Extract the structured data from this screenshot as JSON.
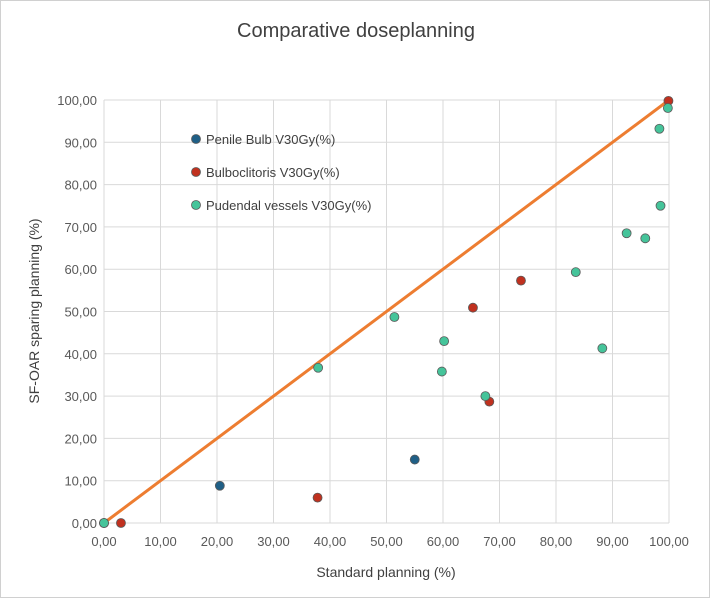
{
  "chart_data": {
    "type": "scatter",
    "title": "Comparative doseplanning",
    "xlabel": "Standard planning (%)",
    "ylabel": "SF-OAR sparing planning (%)",
    "xlim": [
      0,
      100
    ],
    "ylim": [
      0,
      100
    ],
    "x_ticks": [
      "0,00",
      "10,00",
      "20,00",
      "30,00",
      "40,00",
      "50,00",
      "60,00",
      "70,00",
      "80,00",
      "90,00",
      "100,00"
    ],
    "y_ticks": [
      "0,00",
      "10,00",
      "20,00",
      "30,00",
      "40,00",
      "50,00",
      "60,00",
      "70,00",
      "80,00",
      "90,00",
      "100,00"
    ],
    "grid": "horizontal and vertical",
    "legend_position": "top-left inside plot",
    "series": [
      {
        "name": "Penile Bulb V30Gy(%)",
        "color": "#1f5f86",
        "points": [
          [
            0,
            0
          ],
          [
            20.5,
            8.8
          ],
          [
            55,
            15
          ]
        ]
      },
      {
        "name": "Bulboclitoris V30Gy(%)",
        "color": "#c0311f",
        "points": [
          [
            0,
            0
          ],
          [
            3,
            0
          ],
          [
            37.8,
            6
          ],
          [
            65.3,
            50.9
          ],
          [
            68.2,
            28.7
          ],
          [
            73.8,
            57.3
          ],
          [
            99.9,
            99.8
          ]
        ]
      },
      {
        "name": "Pudendal vessels V30Gy(%)",
        "color": "#45c49a",
        "points": [
          [
            0,
            0
          ],
          [
            37.9,
            36.7
          ],
          [
            51.4,
            48.7
          ],
          [
            59.8,
            35.8
          ],
          [
            60.2,
            43
          ],
          [
            67.5,
            30
          ],
          [
            83.5,
            59.3
          ],
          [
            88.2,
            41.3
          ],
          [
            92.5,
            68.5
          ],
          [
            95.8,
            67.3
          ],
          [
            98.3,
            93.2
          ],
          [
            98.5,
            75
          ],
          [
            99.8,
            98.1
          ]
        ]
      }
    ],
    "reference_line": {
      "from": [
        0,
        0
      ],
      "to": [
        100,
        100
      ],
      "color": "#ed7d31"
    }
  }
}
